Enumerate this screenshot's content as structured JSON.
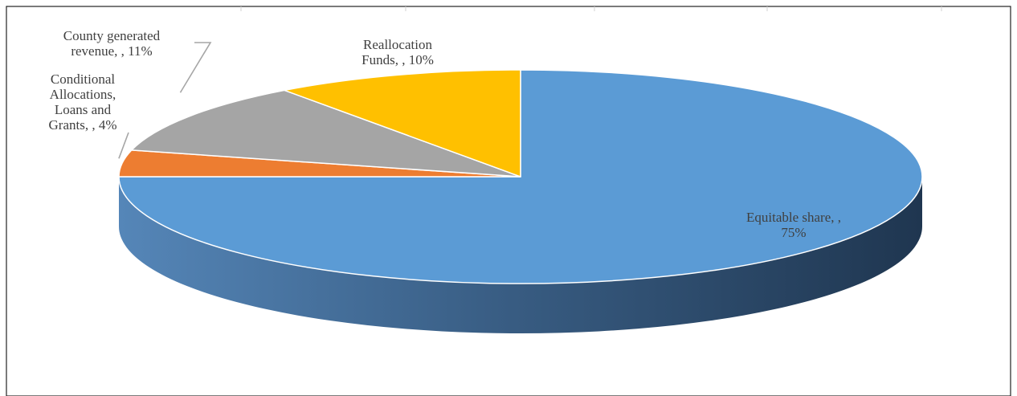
{
  "chart_data": {
    "type": "pie",
    "style": "3d",
    "title": "",
    "categories": [
      "Equitable share",
      "Conditional Allocations, Loans and Grants",
      "County generated revenue",
      "Reallocation Funds"
    ],
    "values": [
      75,
      4,
      11,
      10
    ],
    "unit": "%",
    "colors": [
      "#5B9BD5",
      "#ED7D31",
      "#A5A5A5",
      "#FFC000"
    ],
    "data_labels": [
      [
        "Equitable share, ,",
        "75%"
      ],
      [
        "Conditional",
        "Allocations,",
        "Loans and",
        "Grants, , 4%"
      ],
      [
        "County generated",
        "revenue, , 11%"
      ],
      [
        "Reallocation",
        "Funds, , 10%"
      ]
    ],
    "legend": "none"
  }
}
